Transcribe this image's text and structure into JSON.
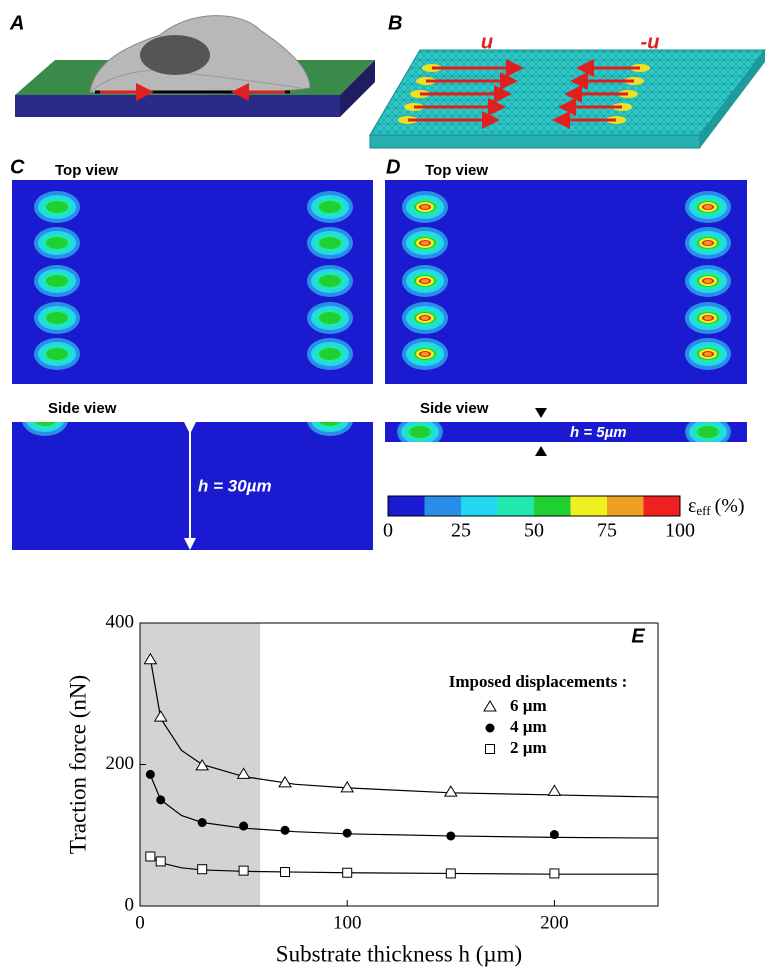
{
  "panels": {
    "a": {
      "label": "A"
    },
    "b": {
      "label": "B",
      "left_arrow": "u",
      "right_arrow": "-u"
    },
    "c": {
      "label": "C",
      "top": "Top view",
      "side": "Side view",
      "h": "h = 30µm"
    },
    "d": {
      "label": "D",
      "top": "Top view",
      "side": "Side view",
      "h": "h = 5µm"
    }
  },
  "colorbar": {
    "ticks": [
      0,
      25,
      50,
      75,
      100
    ],
    "symbol": "ε",
    "subscript": "eff",
    "unit": "(%)",
    "colors": [
      "#1a1ad0",
      "#2a8ee8",
      "#22d8f0",
      "#20e8b0",
      "#20d030",
      "#f0f020",
      "#f0a020",
      "#f02020"
    ]
  },
  "chart_data": {
    "type": "scatter",
    "panel_label": "E",
    "x_label": "Substrate thickness h (µm)",
    "y_label": "Traction force (nN)",
    "xlim": [
      0,
      250
    ],
    "ylim": [
      0,
      400
    ],
    "xticks": [
      0,
      100,
      200
    ],
    "yticks": [
      0,
      200,
      400
    ],
    "shaded_region": [
      0,
      58
    ],
    "legend_title": "Imposed displacements :",
    "x": [
      5,
      10,
      30,
      50,
      70,
      100,
      150,
      200
    ],
    "fit_x": [
      5,
      10,
      20,
      30,
      50,
      75,
      100,
      150,
      200,
      250
    ],
    "series": [
      {
        "name": "6 µm",
        "marker": "triangle",
        "color": "#000000",
        "values": [
          348,
          267,
          198,
          186,
          174,
          167,
          161,
          162
        ],
        "fit_values": [
          350,
          265,
          220,
          200,
          183,
          172,
          167,
          160,
          157,
          154
        ]
      },
      {
        "name": "4 µm",
        "marker": "circle",
        "color": "#000000",
        "values": [
          186,
          150,
          118,
          113,
          107,
          103,
          99,
          101
        ],
        "fit_values": [
          185,
          150,
          128,
          118,
          110,
          105,
          102,
          99,
          97,
          96
        ]
      },
      {
        "name": "2 µm",
        "marker": "square",
        "color": "#000000",
        "values": [
          70,
          63,
          52,
          50,
          48,
          47,
          46,
          46
        ],
        "fit_values": [
          70,
          61,
          54,
          51,
          49,
          48,
          47,
          46,
          45,
          45
        ]
      }
    ]
  }
}
